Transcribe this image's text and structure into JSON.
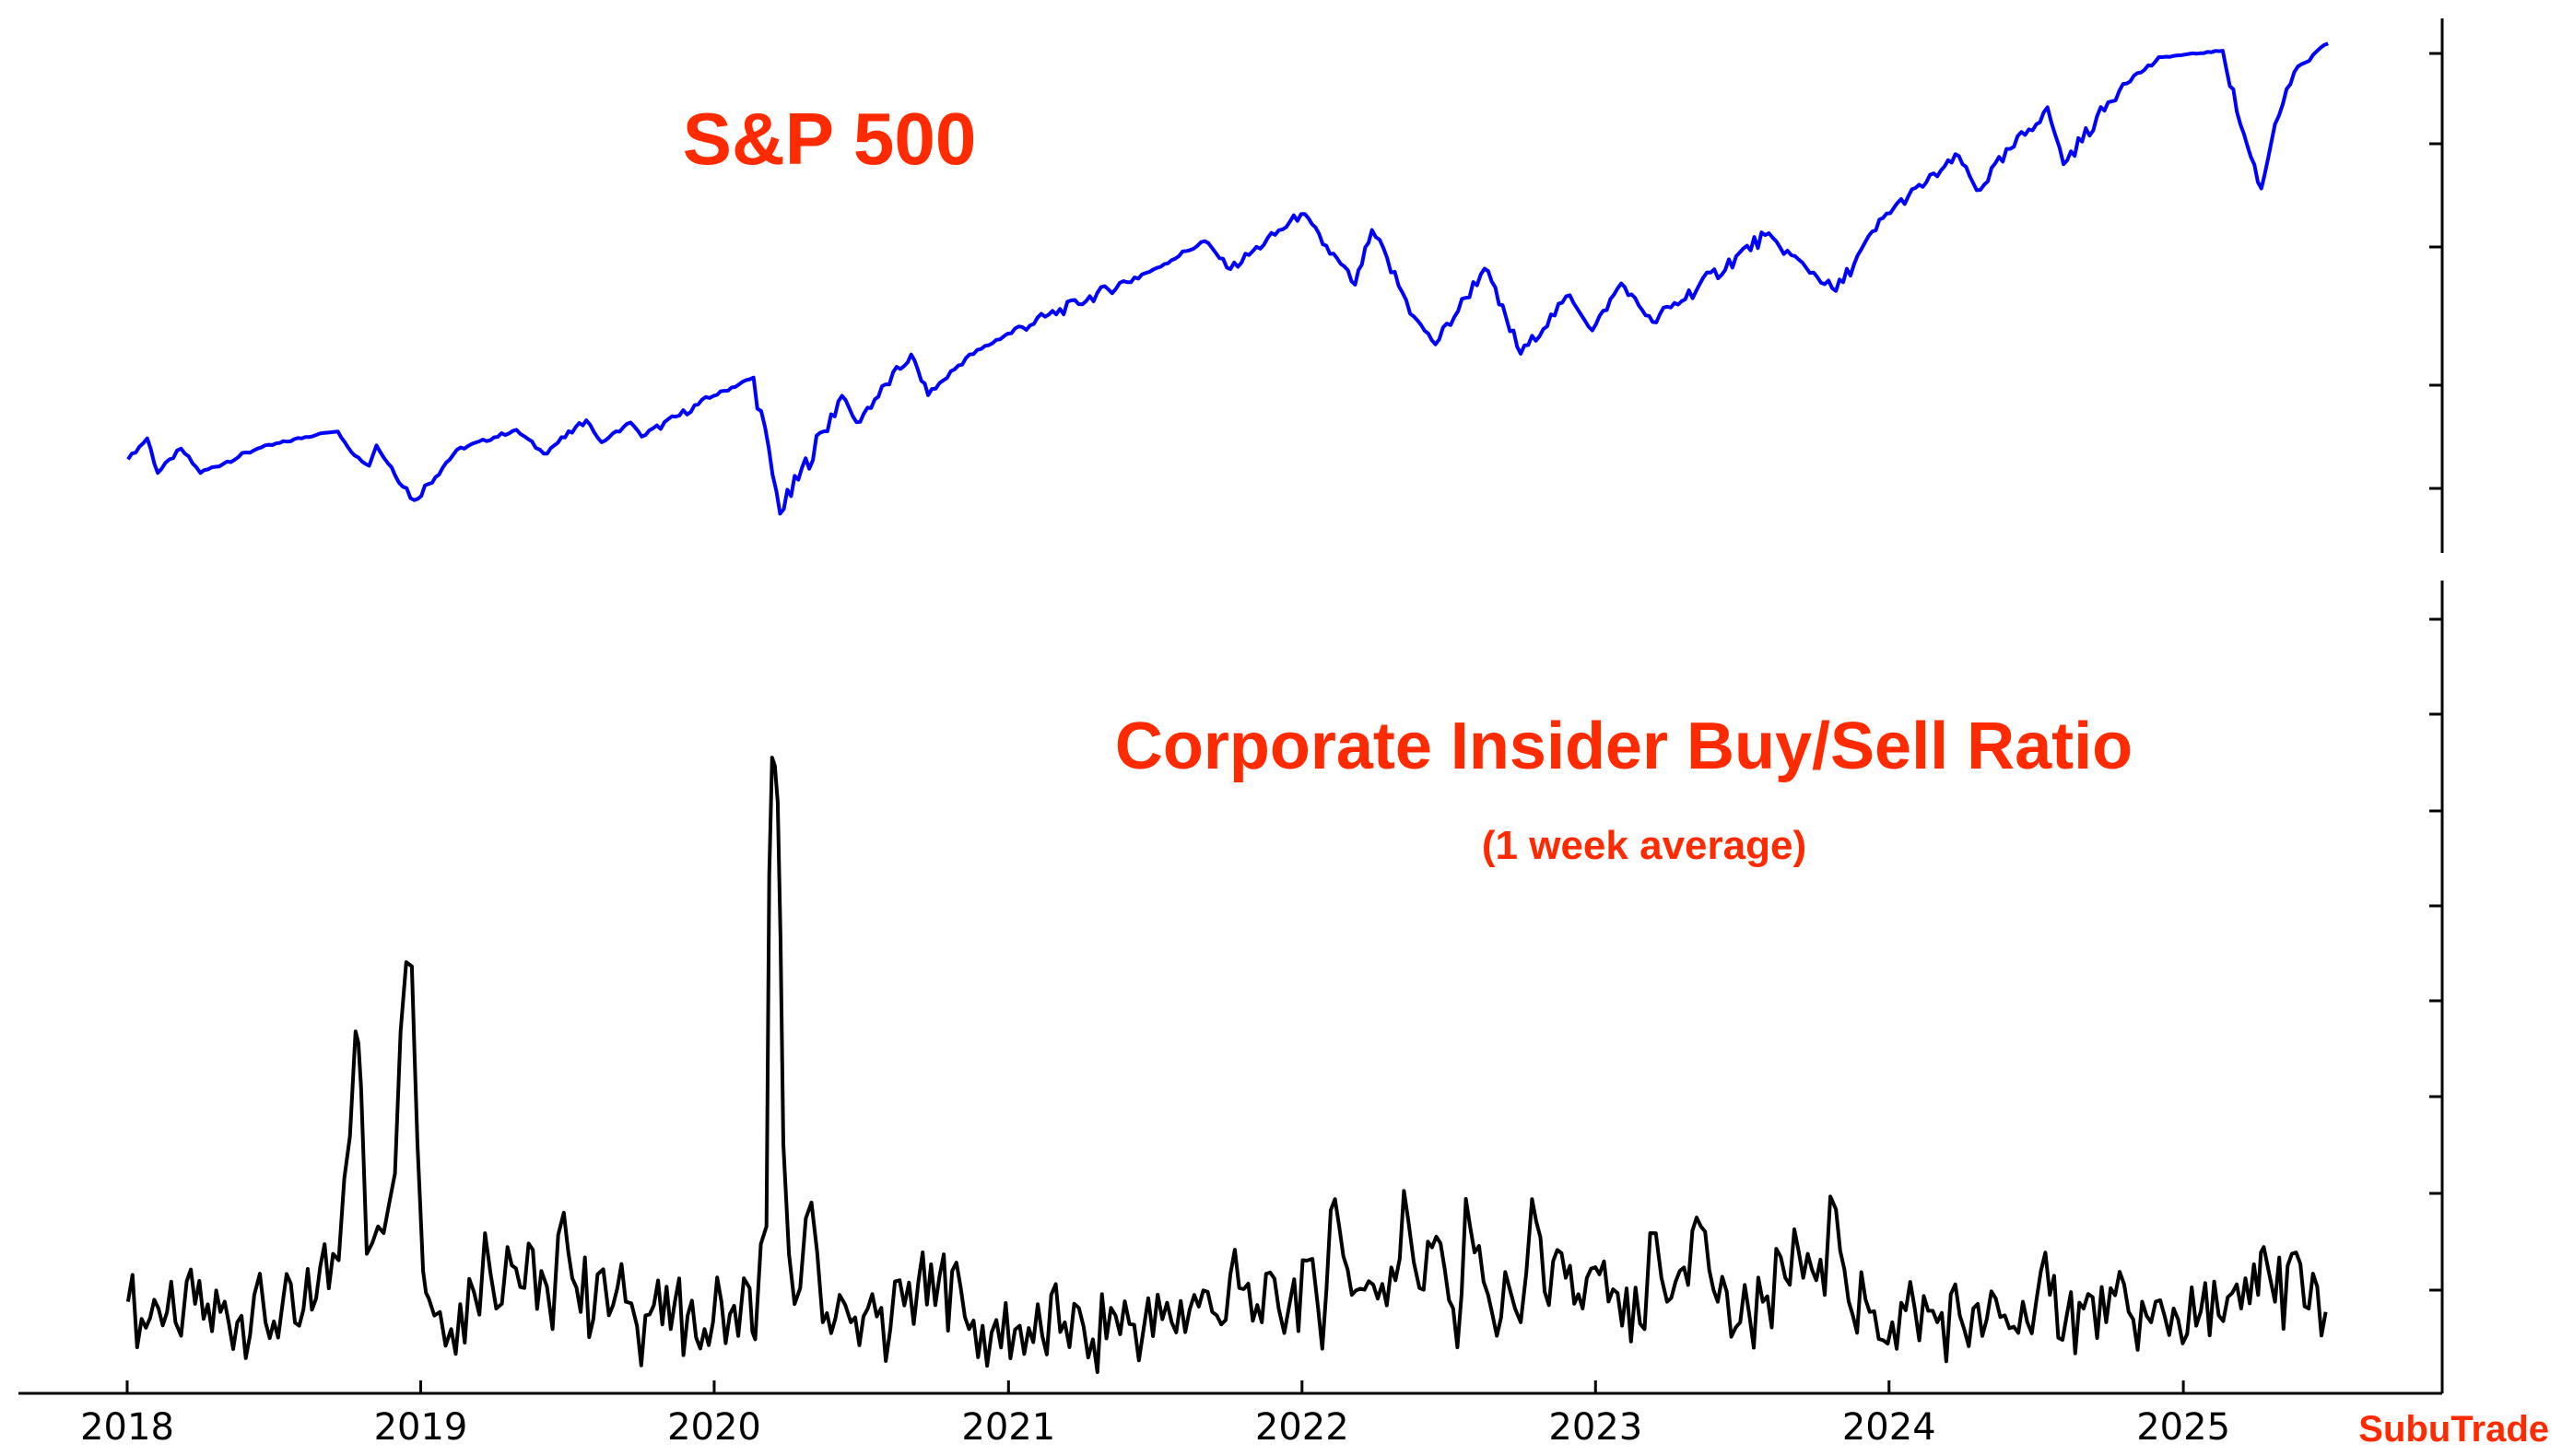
{
  "colors": {
    "sp500_line": "#0000ff",
    "ratio_line": "#000000",
    "annotation": "#ff2a00",
    "axis": "#000000"
  },
  "watermark": "SubuTrade",
  "chart_data": [
    {
      "type": "line",
      "title": "S&P 500",
      "subtitle": "",
      "y_tick_labels_shown": false,
      "x_tick_labels": [
        "2018",
        "2019",
        "2020",
        "2021",
        "2022",
        "2023",
        "2024",
        "2025"
      ],
      "xlim": [
        "2018-01-01",
        "2025-07-15"
      ],
      "ylim": [
        2100,
        6300
      ],
      "series": [
        {
          "name": "S&P 500",
          "x": [
            "2018-01-02",
            "2018-01-26",
            "2018-02-08",
            "2018-03-09",
            "2018-04-02",
            "2018-06-12",
            "2018-08-29",
            "2018-09-20",
            "2018-10-11",
            "2018-10-29",
            "2018-11-07",
            "2018-12-24",
            "2019-02-15",
            "2019-04-30",
            "2019-06-03",
            "2019-07-26",
            "2019-08-14",
            "2019-09-19",
            "2019-10-03",
            "2019-12-31",
            "2020-02-19",
            "2020-03-23",
            "2020-06-08",
            "2020-06-26",
            "2020-09-02",
            "2020-09-23",
            "2020-11-09",
            "2020-12-31",
            "2021-06-30",
            "2021-09-02",
            "2021-10-04",
            "2021-12-31",
            "2022-03-08",
            "2022-03-29",
            "2022-05-20",
            "2022-06-16",
            "2022-08-16",
            "2022-09-30",
            "2022-11-30",
            "2022-12-28",
            "2023-02-02",
            "2023-03-13",
            "2023-07-31",
            "2023-10-27",
            "2023-12-29",
            "2024-03-28",
            "2024-04-19",
            "2024-07-16",
            "2024-08-05",
            "2024-10-18",
            "2024-12-06",
            "2025-02-19",
            "2025-03-13",
            "2025-04-08",
            "2025-04-25",
            "2025-05-19",
            "2025-06-30"
          ],
          "values": [
            2695,
            2872,
            2581,
            2786,
            2581,
            2786,
            2914,
            2930,
            2728,
            2641,
            2813,
            2351,
            2775,
            2945,
            2744,
            3025,
            2840,
            3006,
            2887,
            3230,
            3386,
            2237,
            3232,
            3009,
            3580,
            3237,
            3550,
            3756,
            4297,
            4537,
            4300,
            4766,
            4170,
            4631,
            3901,
            3666,
            4305,
            3586,
            4080,
            3783,
            4180,
            3855,
            4588,
            4117,
            4770,
            5254,
            4967,
            5667,
            5186,
            5864,
            6090,
            6144,
            5521,
            4982,
            5525,
            5964,
            6205
          ]
        }
      ]
    },
    {
      "type": "line",
      "title": "Corporate Insider Buy/Sell Ratio",
      "subtitle": "(1 week average)",
      "y_tick_labels_shown": false,
      "x_tick_labels": [
        "2018",
        "2019",
        "2020",
        "2021",
        "2022",
        "2023",
        "2024",
        "2025"
      ],
      "xlim": [
        "2018-01-01",
        "2025-07-15"
      ],
      "ylim": [
        0,
        2.2
      ],
      "series": [
        {
          "name": "Corporate Insider Buy/Sell Ratio",
          "x": [
            "2018-01-02",
            "2018-01-19",
            "2018-02-09",
            "2018-03-02",
            "2018-03-16",
            "2018-04-06",
            "2018-04-27",
            "2018-05-18",
            "2018-06-08",
            "2018-06-22",
            "2018-07-13",
            "2018-08-03",
            "2018-08-24",
            "2018-09-14",
            "2018-09-28",
            "2018-10-12",
            "2018-10-19",
            "2018-10-26",
            "2018-11-09",
            "2018-11-23",
            "2018-12-07",
            "2018-12-21",
            "2018-12-28",
            "2019-01-04",
            "2019-01-11",
            "2019-01-25",
            "2019-02-08",
            "2019-03-08",
            "2019-03-22",
            "2019-04-05",
            "2019-04-19",
            "2019-05-10",
            "2019-05-31",
            "2019-06-14",
            "2019-06-28",
            "2019-07-19",
            "2019-08-09",
            "2019-08-23",
            "2019-09-13",
            "2019-09-27",
            "2019-10-18",
            "2019-11-08",
            "2019-11-29",
            "2019-12-20",
            "2020-01-10",
            "2020-01-31",
            "2020-02-14",
            "2020-02-21",
            "2020-03-06",
            "2020-03-13",
            "2020-03-20",
            "2020-03-27",
            "2020-04-03",
            "2020-04-17",
            "2020-05-01",
            "2020-05-15",
            "2020-06-05",
            "2020-06-19",
            "2020-07-10",
            "2020-08-07",
            "2020-09-11",
            "2020-10-02",
            "2020-10-23",
            "2020-11-13",
            "2020-12-11",
            "2021-01-15",
            "2021-02-12",
            "2021-03-12",
            "2021-04-16",
            "2021-05-14",
            "2021-06-18",
            "2021-07-23",
            "2021-08-20",
            "2021-09-17",
            "2021-10-15",
            "2021-11-12",
            "2021-12-03",
            "2021-12-17",
            "2022-01-07",
            "2022-01-21",
            "2022-02-11",
            "2022-03-04",
            "2022-03-25",
            "2022-04-22",
            "2022-05-13",
            "2022-05-27",
            "2022-06-17",
            "2022-07-08",
            "2022-07-29",
            "2022-08-26",
            "2022-09-16",
            "2022-09-30",
            "2022-10-14",
            "2022-11-04",
            "2022-11-25",
            "2022-12-16",
            "2023-01-06",
            "2023-02-03",
            "2023-03-03",
            "2023-03-17",
            "2023-03-31",
            "2023-04-21",
            "2023-05-12",
            "2023-06-02",
            "2023-06-30",
            "2023-07-28",
            "2023-08-25",
            "2023-09-22",
            "2023-10-13",
            "2023-10-27",
            "2023-11-17",
            "2023-12-08",
            "2024-01-05",
            "2024-02-02",
            "2024-03-01",
            "2024-03-29",
            "2024-04-26",
            "2024-05-24",
            "2024-06-21",
            "2024-07-19",
            "2024-08-09",
            "2024-08-30",
            "2024-09-27",
            "2024-10-25",
            "2024-11-22",
            "2024-12-20",
            "2025-01-17",
            "2025-02-14",
            "2025-03-14",
            "2025-04-04",
            "2025-04-11",
            "2025-04-25",
            "2025-05-16",
            "2025-06-06",
            "2025-06-27"
          ],
          "values": [
            0.16,
            0.11,
            0.14,
            0.1,
            0.22,
            0.11,
            0.13,
            0.1,
            0.18,
            0.1,
            0.15,
            0.09,
            0.17,
            0.3,
            0.52,
            0.95,
            0.78,
            0.3,
            0.38,
            0.45,
            0.95,
            1.14,
            0.62,
            0.25,
            0.17,
            0.13,
            0.08,
            0.19,
            0.36,
            0.14,
            0.32,
            0.2,
            0.25,
            0.08,
            0.42,
            0.13,
            0.24,
            0.12,
            0.16,
            0.09,
            0.15,
            0.08,
            0.12,
            0.08,
            0.16,
            0.06,
            0.2,
            0.05,
            0.38,
            1.75,
            1.62,
            0.62,
            0.3,
            0.2,
            0.45,
            0.1,
            0.18,
            0.1,
            0.14,
            0.08,
            0.22,
            0.15,
            0.25,
            0.08,
            0.07,
            0.09,
            0.06,
            0.1,
            0.05,
            0.12,
            0.08,
            0.1,
            0.18,
            0.12,
            0.2,
            0.1,
            0.14,
            0.16,
            0.28,
            0.14,
            0.46,
            0.18,
            0.22,
            0.26,
            0.4,
            0.2,
            0.35,
            0.14,
            0.38,
            0.12,
            0.2,
            0.1,
            0.46,
            0.15,
            0.23,
            0.14,
            0.24,
            0.09,
            0.08,
            0.36,
            0.16,
            0.26,
            0.38,
            0.16,
            0.1,
            0.16,
            0.23,
            0.3,
            0.18,
            0.43,
            0.12,
            0.13,
            0.1,
            0.14,
            0.1,
            0.12,
            0.06,
            0.12,
            0.1,
            0.18,
            0.12,
            0.14,
            0.1,
            0.13,
            0.1,
            0.14,
            0.09,
            0.12,
            0.14,
            0.18,
            0.32,
            0.16,
            0.3,
            0.14,
            0.13
          ]
        }
      ]
    }
  ]
}
